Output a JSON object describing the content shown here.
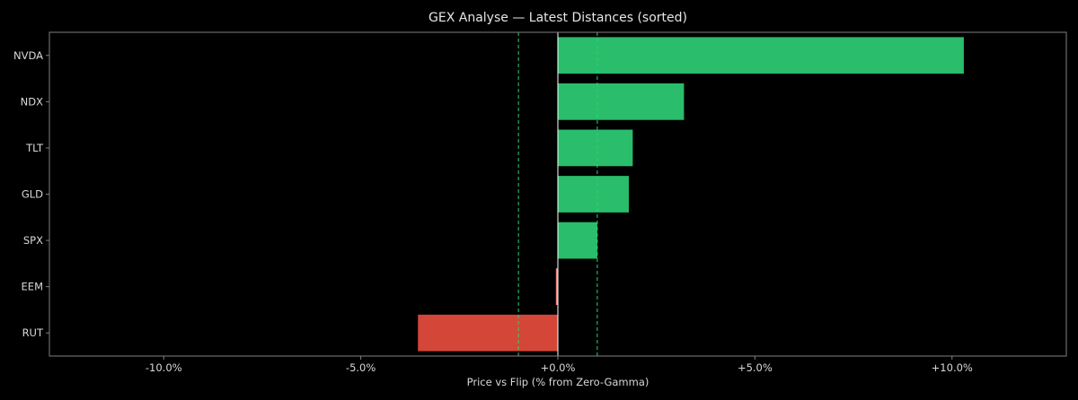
{
  "chart_data": {
    "type": "bar",
    "orientation": "horizontal",
    "title": "GEX Analyse — Latest Distances (sorted)",
    "xlabel": "Price vs Flip (% from Zero-Gamma)",
    "ylabel": "",
    "xlim": [
      -12.9,
      12.9
    ],
    "x_ticks": [
      -10,
      -5,
      0,
      5,
      10
    ],
    "x_tick_labels": [
      "-10.0%",
      "-5.0%",
      "+0.0%",
      "+5.0%",
      "+10.0%"
    ],
    "categories": [
      "NVDA",
      "NDX",
      "TLT",
      "GLD",
      "SPX",
      "EEM",
      "RUT"
    ],
    "values": [
      10.3,
      3.2,
      1.9,
      1.8,
      1.0,
      -0.05,
      -3.55
    ],
    "reference_lines": [
      {
        "x": 0,
        "color": "#ffffff",
        "style": "solid"
      },
      {
        "x": -1.0,
        "color": "#2bd46d",
        "style": "dashed"
      },
      {
        "x": 1.0,
        "color": "#2bd46d",
        "style": "dashed"
      }
    ],
    "colors": {
      "positive": "#2abd6b",
      "negative": "#d44638",
      "small_negative": "#f08080",
      "background": "#000000",
      "frame": "#808080",
      "text": "#d9d9d9"
    },
    "grid": false,
    "legend": "none"
  }
}
